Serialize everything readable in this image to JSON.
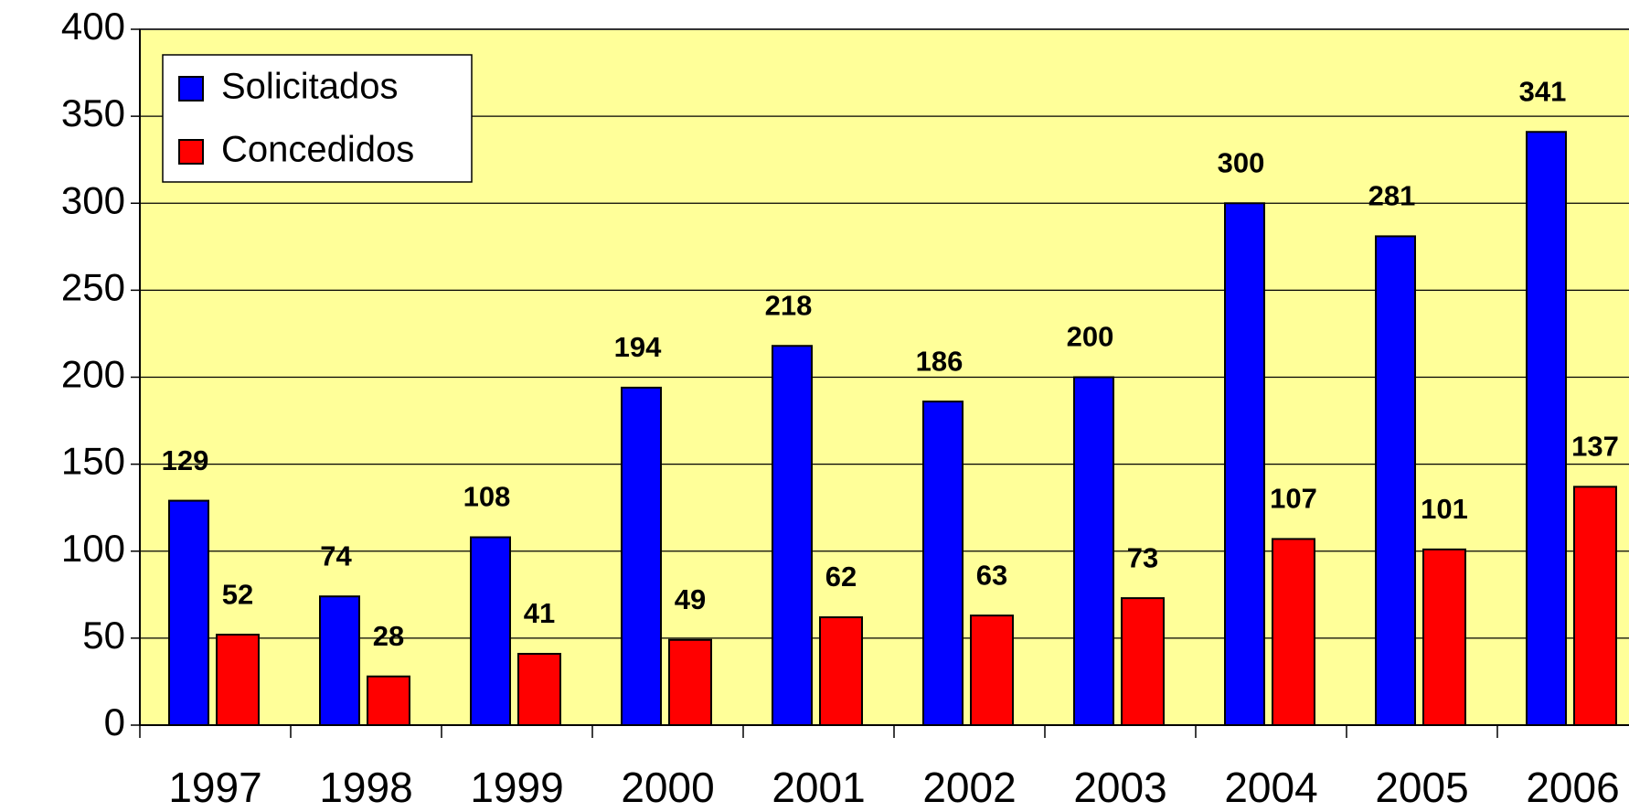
{
  "chart_data": {
    "type": "bar",
    "categories": [
      "1997",
      "1998",
      "1999",
      "2000",
      "2001",
      "2002",
      "2003",
      "2004",
      "2005",
      "2006"
    ],
    "series": [
      {
        "name": "Solicitados",
        "color": "#0000ff",
        "values": [
          129,
          74,
          108,
          194,
          218,
          186,
          200,
          300,
          281,
          341
        ]
      },
      {
        "name": "Concedidos",
        "color": "#ff0000",
        "values": [
          52,
          28,
          41,
          49,
          62,
          63,
          73,
          107,
          101,
          137
        ]
      }
    ],
    "ylim": [
      0,
      400
    ],
    "yticks": [
      0,
      50,
      100,
      150,
      200,
      250,
      300,
      350,
      400
    ],
    "grid": true,
    "legend": "top-left",
    "background": "#ffff99"
  }
}
